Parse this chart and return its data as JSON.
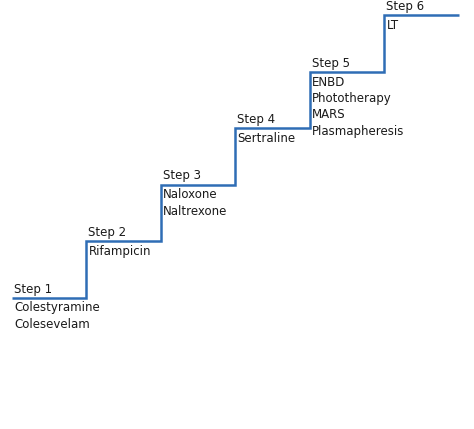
{
  "steps": [
    {
      "label": "Step 1",
      "drugs": "Colestyramine\nColesevelam"
    },
    {
      "label": "Step 2",
      "drugs": "Rifampicin"
    },
    {
      "label": "Step 3",
      "drugs": "Naloxone\nNaltrexone"
    },
    {
      "label": "Step 4",
      "drugs": "Sertraline"
    },
    {
      "label": "Step 5",
      "drugs": "ENBD\nPhototherapy\nMARS\nPlasmapheresis"
    },
    {
      "label": "Step 6",
      "drugs": "LT"
    }
  ],
  "line_color": "#2f6db5",
  "label_color": "#1a1a1a",
  "bg_color": "#ffffff",
  "step_label_fontsize": 8.5,
  "drug_label_fontsize": 8.5,
  "line_width": 1.8,
  "figsize": [
    4.74,
    4.29
  ],
  "dpi": 100
}
